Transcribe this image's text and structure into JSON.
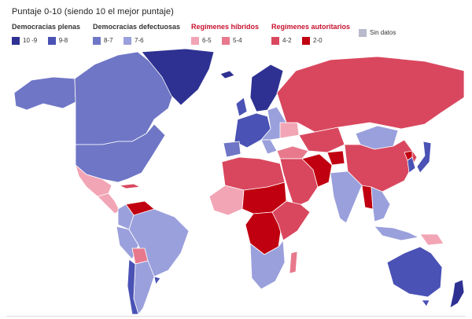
{
  "title": "Puntaje 0-10 (siendo 10 el mejor puntaje)",
  "legend": {
    "groups": [
      {
        "title": "Democracias plenas",
        "items": [
          {
            "label": "10 -9",
            "color": "#2e3192"
          },
          {
            "label": "9-8",
            "color": "#4a52b5"
          }
        ]
      },
      {
        "title": "Democracias defectuosas",
        "items": [
          {
            "label": "8-7",
            "color": "#6f76c6"
          },
          {
            "label": "7-6",
            "color": "#9aa0dc"
          }
        ]
      },
      {
        "title": "Regímenes híbridos",
        "items": [
          {
            "label": "6-5",
            "color": "#f2a5b5"
          },
          {
            "label": "5-4",
            "color": "#e8798d"
          }
        ]
      },
      {
        "title": "Regímenes autoritarios",
        "items": [
          {
            "label": "4-2",
            "color": "#d9475e"
          },
          {
            "label": "2-0",
            "color": "#c00010"
          }
        ]
      },
      {
        "title": "",
        "items": [
          {
            "label": "Sin datos",
            "color": "#b9b9cc"
          }
        ]
      }
    ]
  },
  "map": {
    "type": "choropleth",
    "regions": [
      {
        "name": "Canadá",
        "class": "8-7"
      },
      {
        "name": "Alaska",
        "class": "8-7"
      },
      {
        "name": "Groenlandia",
        "class": "10 -9"
      },
      {
        "name": "Estados Unidos",
        "class": "8-7"
      },
      {
        "name": "México",
        "class": "6-5"
      },
      {
        "name": "Centroamérica",
        "class": "6-5"
      },
      {
        "name": "Cuba",
        "class": "4-2"
      },
      {
        "name": "Venezuela",
        "class": "2-0"
      },
      {
        "name": "Colombia",
        "class": "7-6"
      },
      {
        "name": "Brasil",
        "class": "7-6"
      },
      {
        "name": "Perú",
        "class": "7-6"
      },
      {
        "name": "Bolivia",
        "class": "5-4"
      },
      {
        "name": "Argentina",
        "class": "7-6"
      },
      {
        "name": "Chile",
        "class": "9-8"
      },
      {
        "name": "Uruguay",
        "class": "9-8"
      },
      {
        "name": "Escandinavia",
        "class": "10 -9"
      },
      {
        "name": "Europa occidental",
        "class": "9-8"
      },
      {
        "name": "Europa oriental",
        "class": "7-6"
      },
      {
        "name": "Rusia",
        "class": "4-2"
      },
      {
        "name": "Ucrania",
        "class": "6-5"
      },
      {
        "name": "Turquía",
        "class": "5-4"
      },
      {
        "name": "Norte de África",
        "class": "4-2"
      },
      {
        "name": "Sahel",
        "class": "2-0"
      },
      {
        "name": "África occidental",
        "class": "6-5"
      },
      {
        "name": "África central",
        "class": "2-0"
      },
      {
        "name": "África oriental",
        "class": "4-2"
      },
      {
        "name": "África austral",
        "class": "7-6"
      },
      {
        "name": "Madagascar",
        "class": "5-4"
      },
      {
        "name": "Oriente Medio",
        "class": "4-2"
      },
      {
        "name": "Irán",
        "class": "2-0"
      },
      {
        "name": "Afganistán",
        "class": "2-0"
      },
      {
        "name": "Asia central",
        "class": "4-2"
      },
      {
        "name": "Mongolia",
        "class": "7-6"
      },
      {
        "name": "China",
        "class": "4-2"
      },
      {
        "name": "India",
        "class": "7-6"
      },
      {
        "name": "Myanmar",
        "class": "2-0"
      },
      {
        "name": "Sudeste asiático",
        "class": "7-6"
      },
      {
        "name": "Corea del Sur",
        "class": "9-8"
      },
      {
        "name": "Japón",
        "class": "9-8"
      },
      {
        "name": "Indonesia",
        "class": "7-6"
      },
      {
        "name": "Papúa Nueva Guinea",
        "class": "6-5"
      },
      {
        "name": "Australia",
        "class": "9-8"
      },
      {
        "name": "Nueva Zelanda",
        "class": "10 -9"
      }
    ]
  }
}
